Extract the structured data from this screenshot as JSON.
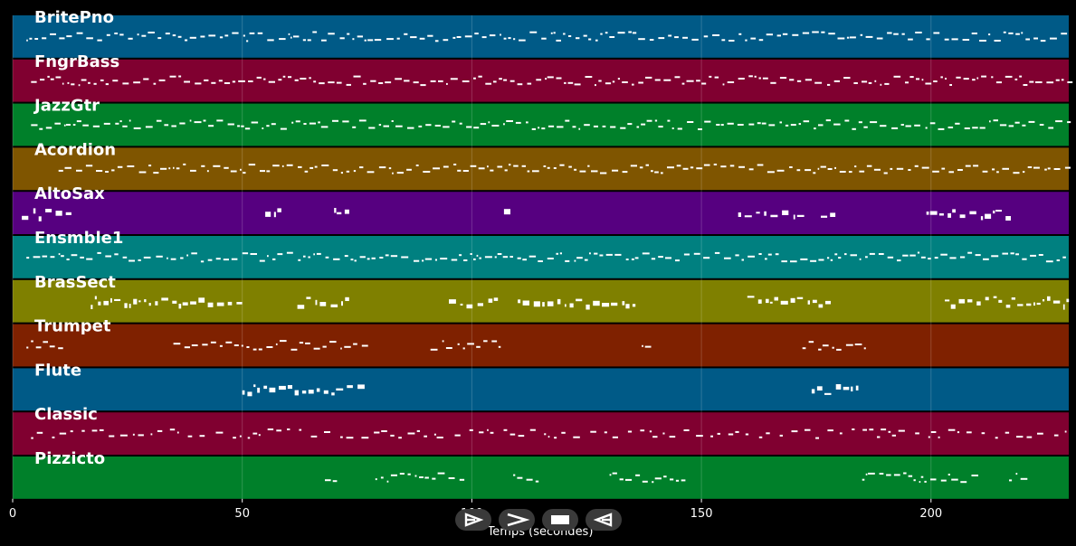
{
  "axis": {
    "xlabel": "Temps (secondes)",
    "xlim": [
      0,
      230
    ],
    "ticks": [
      0,
      50,
      100,
      150,
      200
    ]
  },
  "tracks": [
    {
      "name": "BritePno",
      "color": "#005a87"
    },
    {
      "name": "FngrBass",
      "color": "#800030"
    },
    {
      "name": "JazzGtr",
      "color": "#00802a"
    },
    {
      "name": "Acordion",
      "color": "#7f5500"
    },
    {
      "name": "AltoSax",
      "color": "#560080"
    },
    {
      "name": "Ensmble1",
      "color": "#008080"
    },
    {
      "name": "BrasSect",
      "color": "#7f8000"
    },
    {
      "name": "Trumpet",
      "color": "#7f2100"
    },
    {
      "name": "Flute",
      "color": "#005a87"
    },
    {
      "name": "Classic",
      "color": "#800030"
    },
    {
      "name": "Pizzicto",
      "color": "#00802a"
    }
  ],
  "transport": [
    {
      "name": "play-outline-button",
      "icon": "play-outline-icon"
    },
    {
      "name": "fast-forward-button",
      "icon": "chevron-right-icon"
    },
    {
      "name": "stop-button",
      "icon": "stop-icon"
    },
    {
      "name": "rewind-button",
      "icon": "rewind-icon"
    }
  ]
}
